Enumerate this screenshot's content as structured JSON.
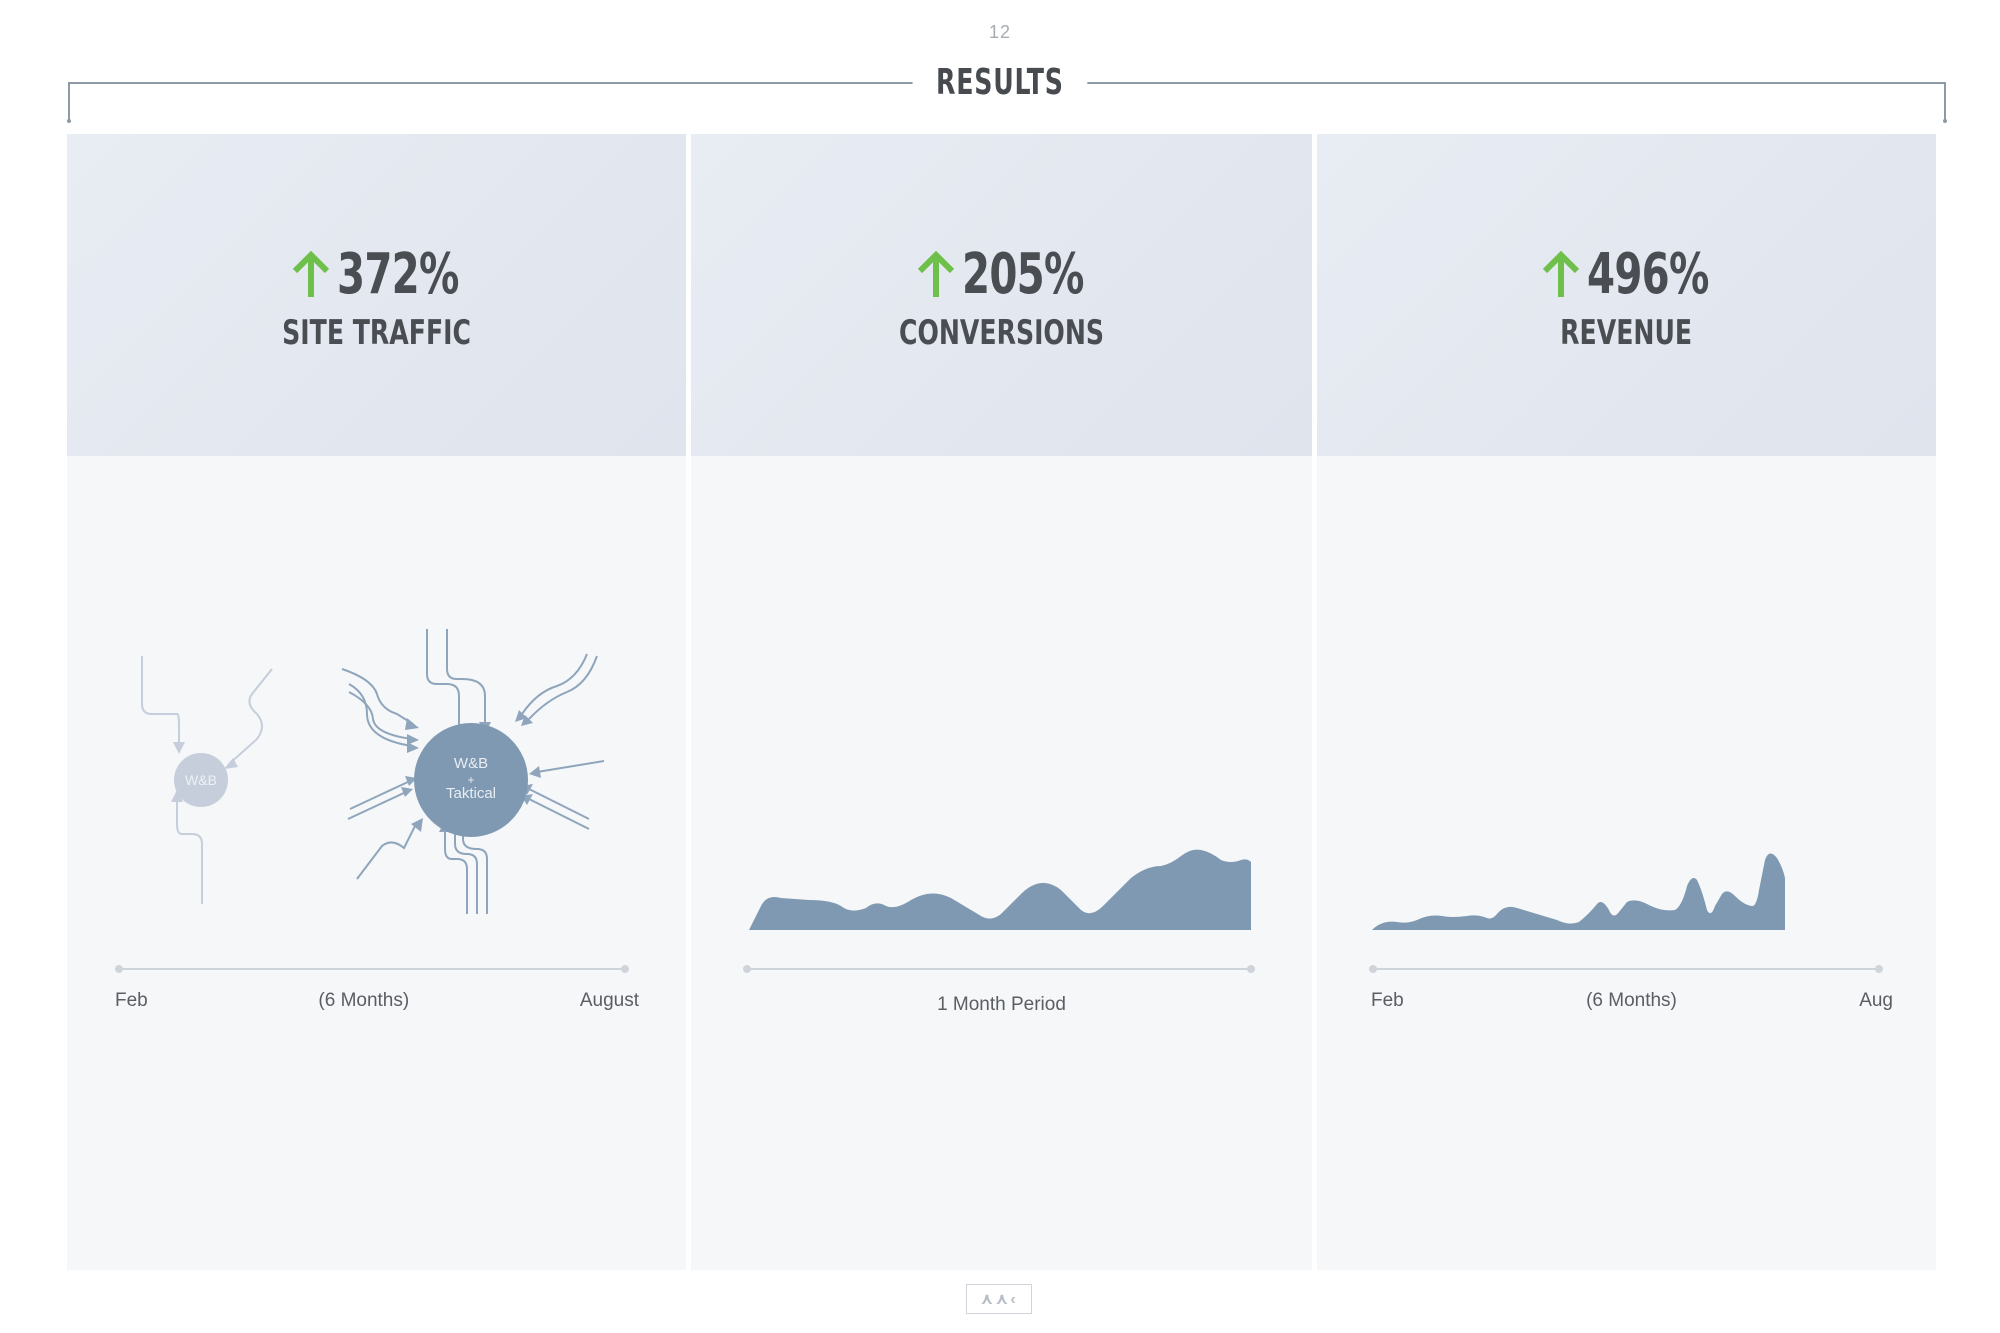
{
  "page": {
    "number": "12",
    "title": "RESULTS"
  },
  "colors": {
    "up_arrow": "#6fbf4b",
    "chart_fill": "#7f99b3",
    "circle_small": "#c5ceda",
    "circle_large": "#7f99b3"
  },
  "panels": [
    {
      "value": "372%",
      "label": "SITE TRAFFIC",
      "diagram": {
        "before_label": "W&B",
        "after_label_lines": [
          "W&B",
          "+",
          "Taktical"
        ]
      },
      "timeline": {
        "start": "Feb",
        "middle": "(6 Months)",
        "end": "August"
      }
    },
    {
      "value": "205%",
      "label": "CONVERSIONS",
      "timeline": {
        "caption": "1 Month Period"
      }
    },
    {
      "value": "496%",
      "label": "REVENUE",
      "timeline": {
        "start": "Feb",
        "middle": "(6 Months)",
        "end": "Aug"
      }
    }
  ],
  "footer": {
    "logo_text": "⋏⋏‹"
  }
}
